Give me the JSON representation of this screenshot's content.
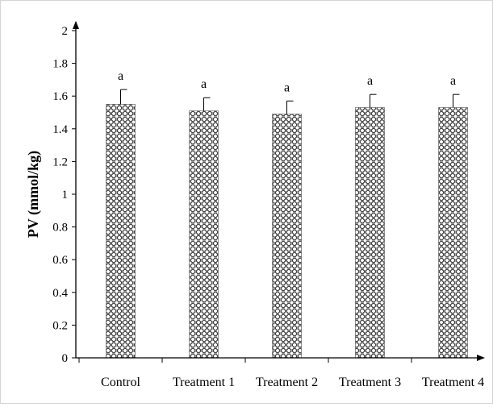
{
  "chart_data": {
    "type": "bar",
    "categories": [
      "Control",
      "Treatment 1",
      "Treatment 2",
      "Treatment 3",
      "Treatment 4"
    ],
    "values": [
      1.55,
      1.51,
      1.49,
      1.53,
      1.53
    ],
    "error_upper": [
      0.09,
      0.08,
      0.08,
      0.08,
      0.08
    ],
    "significance": [
      "a",
      "a",
      "a",
      "a",
      "a"
    ],
    "title": "",
    "xlabel": "",
    "ylabel": "PV (mmol/kg)",
    "ylim": [
      0,
      2
    ],
    "yticks": [
      "0",
      "0.2",
      "0.4",
      "0.6",
      "0.8",
      "1",
      "1.2",
      "1.4",
      "1.6",
      "1.8",
      "2"
    ],
    "grid": false,
    "legend": "none",
    "bar_pattern": "crosshatch-circles",
    "colors": {
      "bar_fill": "#ffffff",
      "bar_pattern": "#333333",
      "axis": "#000000",
      "error_bar": "#000000"
    }
  }
}
